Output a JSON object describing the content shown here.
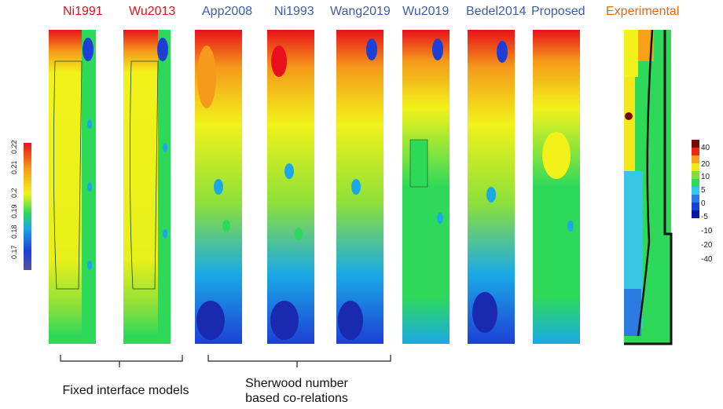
{
  "columns": [
    {
      "label": "Ni1991",
      "color": "#e8111b"
    },
    {
      "label": "Wu2013",
      "color": "#e8111b"
    },
    {
      "label": "App2008",
      "color": "#3d5ea6"
    },
    {
      "label": "Ni1993",
      "color": "#3d5ea6"
    },
    {
      "label": "Wang2019",
      "color": "#3d5ea6"
    },
    {
      "label": "Wu2019",
      "color": "#3d5ea6"
    },
    {
      "label": "Bedel2014",
      "color": "#3d5ea6"
    },
    {
      "label": "Proposed",
      "color": "#3d5ea6"
    },
    {
      "label": "Experimental",
      "color": "#e06a1a"
    }
  ],
  "left_colorbar": {
    "ticks": [
      "0.17",
      "0.18",
      "0.19",
      "0.2",
      "0.21",
      "0.22"
    ],
    "colors": [
      "#5a4fa0",
      "#1e3fd6",
      "#1aa9e6",
      "#2ed95a",
      "#f2f21a",
      "#f59a1a",
      "#e8111b"
    ]
  },
  "right_colorbar": {
    "ticks": [
      "40",
      "20",
      "10",
      "5",
      "0",
      "-5",
      "-10",
      "-20",
      "-40"
    ],
    "colors": [
      "#7a0a0a",
      "#e82a12",
      "#f5a21a",
      "#f5e81a",
      "#7ee03a",
      "#2ed95a",
      "#36c6e6",
      "#2a7ae0",
      "#1e3fd6",
      "#0a1aa0"
    ]
  },
  "groups": [
    {
      "label": "Fixed interface models"
    },
    {
      "label": "Sherwood number based co-relations"
    }
  ]
}
